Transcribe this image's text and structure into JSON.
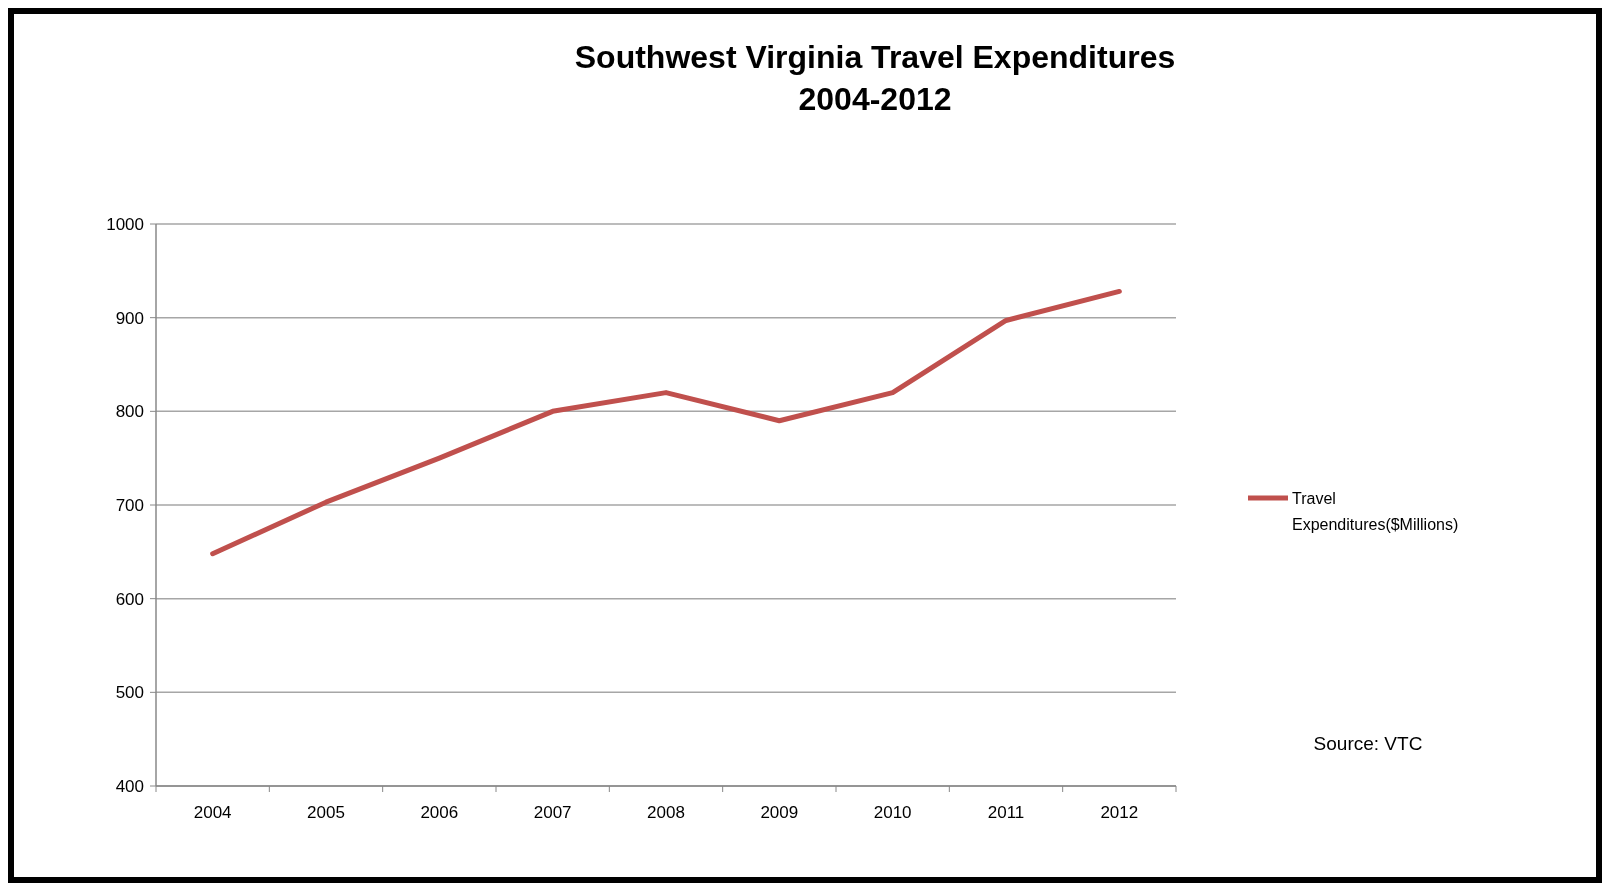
{
  "chart_data": {
    "type": "line",
    "title": "Southwest Virginia  Travel Expenditures\n2004-2012",
    "categories": [
      "2004",
      "2005",
      "2006",
      "2007",
      "2008",
      "2009",
      "2010",
      "2011",
      "2012"
    ],
    "series": [
      {
        "name": "Travel Expenditures($Millions)",
        "color": "#c0504d",
        "values": [
          648,
          703,
          750,
          800,
          820,
          790,
          820,
          897,
          928
        ]
      }
    ],
    "ylim": [
      400,
      1000
    ],
    "yticks": [
      400,
      500,
      600,
      700,
      800,
      900,
      1000
    ],
    "grid": "y",
    "legend": "right",
    "marker": "none",
    "line_style": "solid",
    "annotations": [
      "Source: VTC"
    ]
  }
}
